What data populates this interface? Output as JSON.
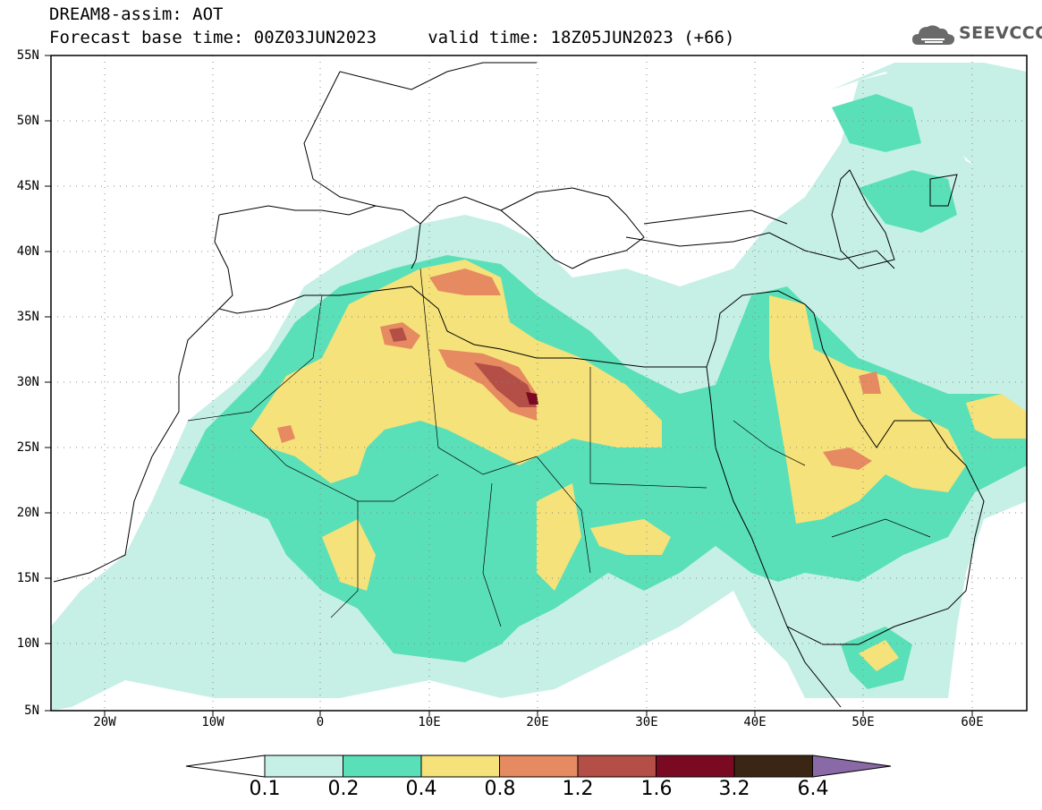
{
  "header": {
    "title_line1": "DREAM8-assim: AOT",
    "title_line2": "Forecast base time: 00Z03JUN2023     valid time: 18Z05JUN2023 (+66)",
    "logo_text": "SEEVCCC"
  },
  "map": {
    "region": {
      "lon_min": -25,
      "lon_max": 65,
      "lat_min": 5,
      "lat_max": 55
    },
    "lat_ticks": [
      "55N",
      "50N",
      "45N",
      "40N",
      "35N",
      "30N",
      "25N",
      "20N",
      "15N",
      "10N",
      "5N"
    ],
    "lon_ticks": [
      "20W",
      "10W",
      "0",
      "10E",
      "20E",
      "30E",
      "40E",
      "50E",
      "60E"
    ],
    "variable": "AOT"
  },
  "legend": {
    "labels": [
      "0.1",
      "0.2",
      "0.4",
      "0.8",
      "1.2",
      "1.6",
      "3.2",
      "6.4"
    ],
    "colors": [
      "#ffffff",
      "#c6f0e6",
      "#5ae0b8",
      "#f5e27a",
      "#e68a62",
      "#b34f46",
      "#7a0a22",
      "#3b2616",
      "#8a6aa6"
    ]
  }
}
